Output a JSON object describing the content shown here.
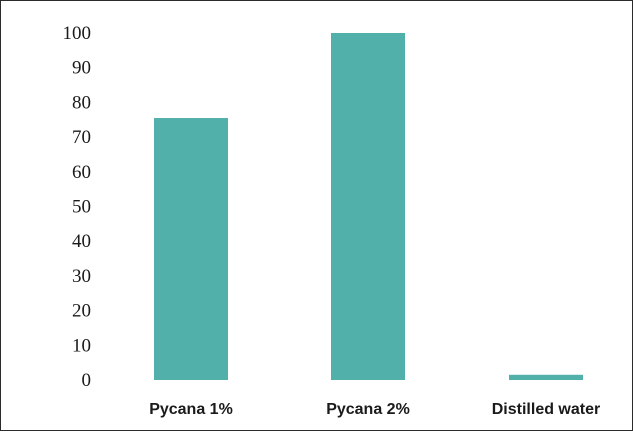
{
  "chart_data": {
    "type": "bar",
    "title": "",
    "xlabel": "",
    "ylabel": "",
    "categories": [
      "Pycana 1%",
      "Pycana 2%",
      "Distilled water"
    ],
    "values": [
      75.5,
      100,
      1.5
    ],
    "ylim": [
      0,
      100
    ],
    "yticks": [
      "0",
      "10",
      "20",
      "30",
      "40",
      "50",
      "60",
      "70",
      "80",
      "90",
      "100"
    ],
    "bar_color": "#52b0ab",
    "grid": false,
    "legend": "none"
  }
}
